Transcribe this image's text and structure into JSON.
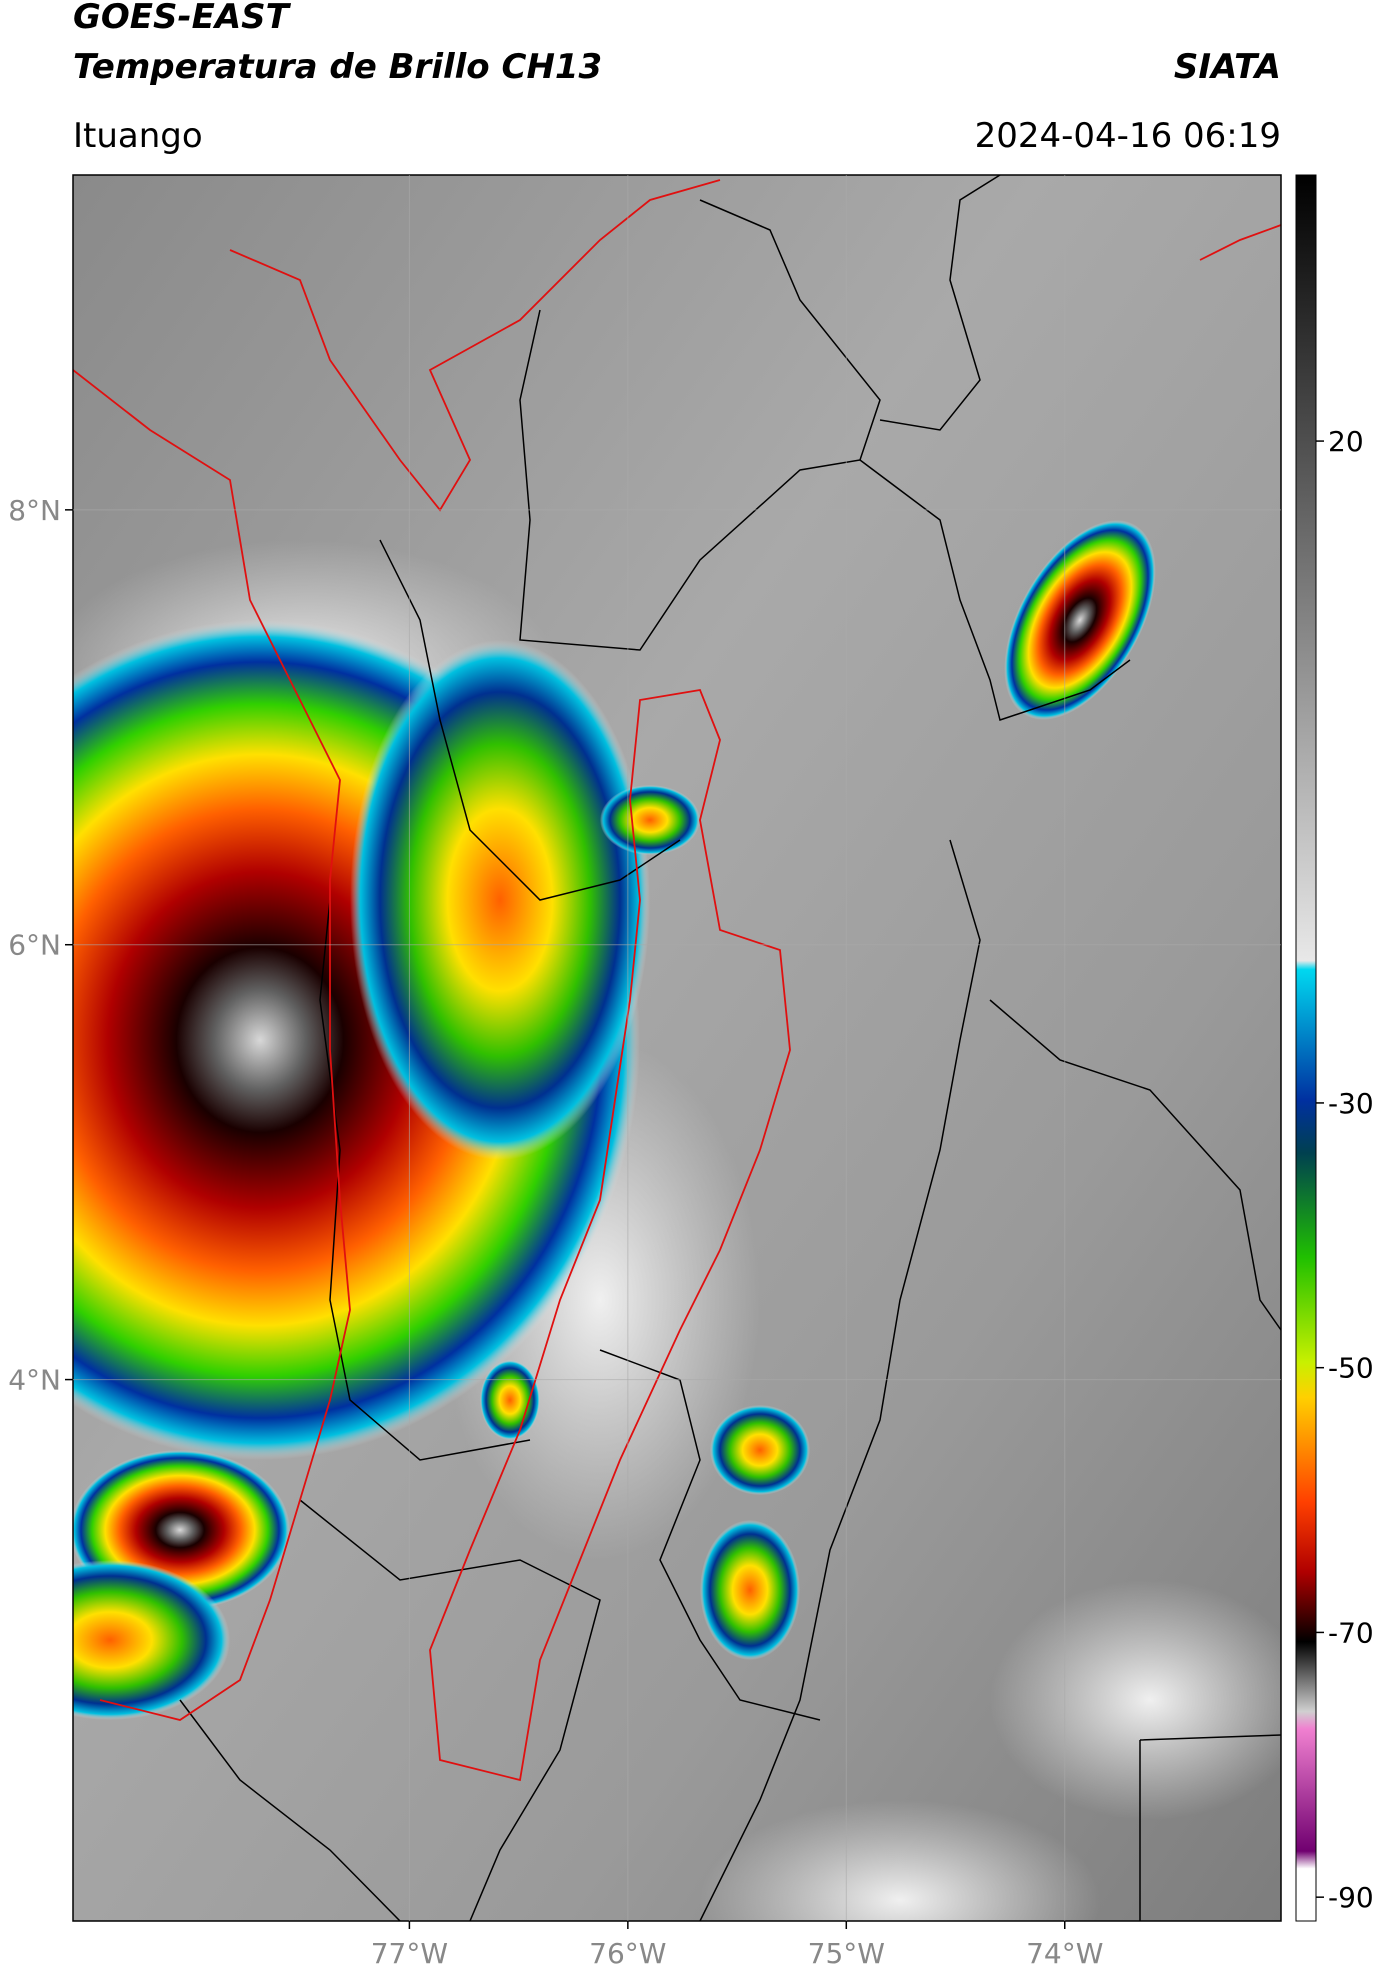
{
  "header": {
    "title": "GOES-EAST",
    "subtitle": "Temperatura de Brillo CH13",
    "source": "SIATA",
    "location": "Ituango",
    "datetime": "2024-04-16 06:19"
  },
  "map": {
    "xlim": [
      -78.54,
      -73.01
    ],
    "ylim": [
      1.51,
      9.54
    ],
    "xticks": [
      {
        "value": -77,
        "label": "77°W"
      },
      {
        "value": -76,
        "label": "76°W"
      },
      {
        "value": -75,
        "label": "75°W"
      },
      {
        "value": -74,
        "label": "74°W"
      }
    ],
    "yticks": [
      {
        "value": 4,
        "label": "4°N"
      },
      {
        "value": 6,
        "label": "6°N"
      },
      {
        "value": 8,
        "label": "8°N"
      }
    ],
    "grid": true
  },
  "colorbar": {
    "lim": [
      -91.8,
      40.1
    ],
    "ticks": [
      20,
      -30,
      -50,
      -70,
      -90
    ]
  }
}
